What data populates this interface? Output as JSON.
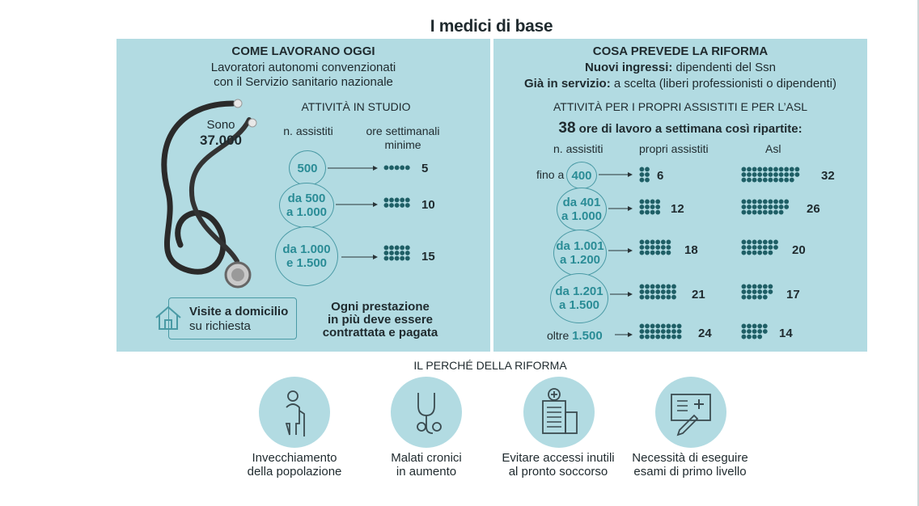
{
  "title": "I medici di base",
  "left_panel": {
    "heading": "COME LAVORANO OGGI",
    "subtitle_line1": "Lavoratori autonomi convenzionati",
    "subtitle_line2": "con il Servizio sanitario nazionale",
    "count_label": "Sono",
    "count_value": "37.000",
    "section_title": "ATTIVITÀ IN STUDIO",
    "col_patients": "n. assistiti",
    "col_hours_line1": "ore settimanali",
    "col_hours_line2": "minime",
    "rows": [
      {
        "band_line1": "500",
        "band_line2": "",
        "hours": 5
      },
      {
        "band_line1": "da 500",
        "band_line2": "a 1.000",
        "hours": 10
      },
      {
        "band_line1": "da 1.000",
        "band_line2": "e 1.500",
        "hours": 15
      }
    ],
    "home_visits_bold": "Visite a domicilio",
    "home_visits_rest": "su richiesta",
    "extra_line1": "Ogni prestazione",
    "extra_line2": "in più deve essere",
    "extra_line3": "contrattata e pagata"
  },
  "right_panel": {
    "heading": "COSA PREVEDE LA RIFORMA",
    "line1_bold": "Nuovi ingressi:",
    "line1_rest": " dipendenti del Ssn",
    "line2_bold": "Già in servizio:",
    "line2_rest": " a scelta (liberi professionisti o dipendenti)",
    "section_title": "ATTIVITÀ PER I PROPRI ASSISTITI E PER L’ASL",
    "hours_number": "38",
    "hours_text": " ore di lavoro a settimana così ripartite:",
    "col_patients": "n. assistiti",
    "col_own": "propri assistiti",
    "col_asl": "Asl",
    "rows": [
      {
        "prefix": "fino a",
        "band_line1": "400",
        "band_line2": "",
        "own": 6,
        "asl": 32
      },
      {
        "prefix": "",
        "band_line1": "da 401",
        "band_line2": "a 1.000",
        "own": 12,
        "asl": 26
      },
      {
        "prefix": "",
        "band_line1": "da 1.001",
        "band_line2": "a 1.200",
        "own": 18,
        "asl": 20
      },
      {
        "prefix": "",
        "band_line1": "da 1.201",
        "band_line2": "a 1.500",
        "own": 21,
        "asl": 17
      },
      {
        "prefix": "oltre",
        "band_line1": "1.500",
        "band_line2": "",
        "own": 24,
        "asl": 14
      }
    ]
  },
  "reasons": {
    "title": "IL PERCHÉ DELLA RIFORMA",
    "items": [
      {
        "icon": "elderly-person-icon",
        "line1": "Invecchiamento",
        "line2": "della popolazione"
      },
      {
        "icon": "stethoscope-icon",
        "line1": "Malati cronici",
        "line2": "in aumento"
      },
      {
        "icon": "hospital-icon",
        "line1": "Evitare accessi inutili",
        "line2": "al pronto soccorso"
      },
      {
        "icon": "medical-report-icon",
        "line1": "Necessità di eseguire",
        "line2": "esami di primo livello"
      }
    ]
  },
  "colors": {
    "panel": "#b2dbe2",
    "dot": "#1f5f66",
    "accent_text": "#2a8c96",
    "circle_border": "#4a9aa5"
  }
}
